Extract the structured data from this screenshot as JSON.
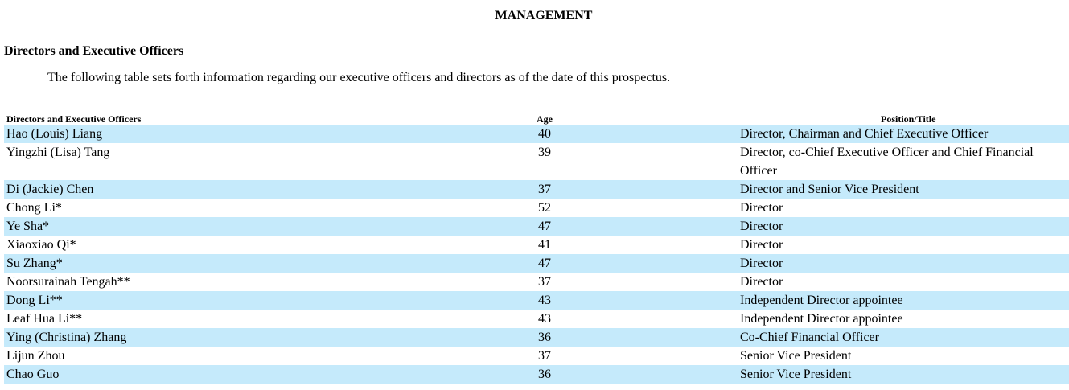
{
  "document": {
    "title": "MANAGEMENT",
    "section_heading": "Directors and Executive Officers",
    "intro": "The following table sets forth information regarding our executive officers and directors as of the date of this prospectus."
  },
  "table": {
    "headers": {
      "name": "Directors and Executive Officers",
      "age": "Age",
      "position": "Position/Title"
    },
    "rows": [
      {
        "name": "Hao (Louis) Liang",
        "age": "40",
        "position": "Director, Chairman and Chief Executive Officer"
      },
      {
        "name": "Yingzhi (Lisa) Tang",
        "age": "39",
        "position": "Director, co-Chief Executive Officer and Chief Financial Officer"
      },
      {
        "name": "Di (Jackie) Chen",
        "age": "37",
        "position": "Director and Senior Vice President"
      },
      {
        "name": "Chong Li*",
        "age": "52",
        "position": "Director"
      },
      {
        "name": "Ye Sha*",
        "age": "47",
        "position": "Director"
      },
      {
        "name": "Xiaoxiao Qi*",
        "age": "41",
        "position": "Director"
      },
      {
        "name": "Su Zhang*",
        "age": "47",
        "position": "Director"
      },
      {
        "name": "Noorsurainah Tengah**",
        "age": "37",
        "position": "Director"
      },
      {
        "name": "Dong Li**",
        "age": "43",
        "position": "Independent Director appointee"
      },
      {
        "name": "Leaf Hua Li**",
        "age": "43",
        "position": "Independent Director appointee"
      },
      {
        "name": "Ying (Christina) Zhang",
        "age": "36",
        "position": "Co-Chief Financial Officer"
      },
      {
        "name": "Lijun Zhou",
        "age": "37",
        "position": "Senior Vice President"
      },
      {
        "name": "Chao Guo",
        "age": "36",
        "position": "Senior Vice President"
      }
    ],
    "shade_color": "#c5eafb"
  }
}
